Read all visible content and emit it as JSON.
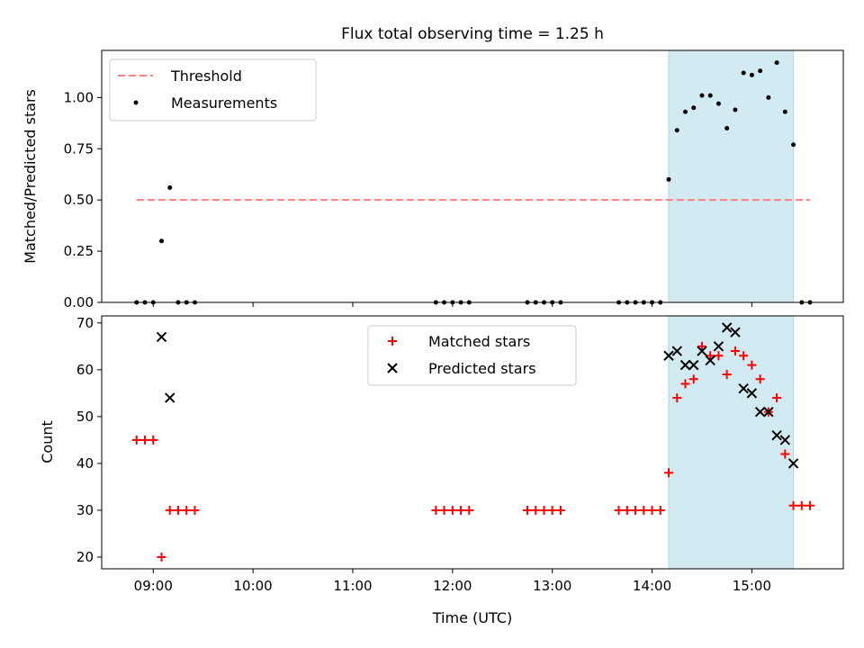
{
  "figure": {
    "title": "Flux total observing time = 1.25 h"
  },
  "chart_data": [
    {
      "type": "scatter",
      "xlabel": "",
      "ylabel": "Matched/Predicted stars",
      "xlim": [
        "08:29",
        "15:55"
      ],
      "ylim": [
        0,
        1.23
      ],
      "yticks": [
        "0.00",
        "0.25",
        "0.50",
        "0.75",
        "1.00"
      ],
      "shaded_region": {
        "x": [
          "14:10",
          "15:25"
        ],
        "color": "#add8e6"
      },
      "threshold": {
        "name": "Threshold",
        "value": 0.5,
        "x": [
          "08:50",
          "15:35"
        ],
        "color": "#ff7f7f"
      },
      "series": [
        {
          "name": "Measurements",
          "color": "#000000",
          "marker": "dot",
          "x": [
            "08:50",
            "08:55",
            "09:00",
            "09:05",
            "09:10",
            "09:15",
            "09:20",
            "09:25",
            "11:50",
            "11:55",
            "12:00",
            "12:05",
            "12:10",
            "12:45",
            "12:50",
            "12:55",
            "13:00",
            "13:05",
            "13:40",
            "13:45",
            "13:50",
            "13:55",
            "14:00",
            "14:05",
            "14:10",
            "14:15",
            "14:20",
            "14:25",
            "14:30",
            "14:35",
            "14:40",
            "14:45",
            "14:50",
            "14:55",
            "15:00",
            "15:05",
            "15:10",
            "15:15",
            "15:20",
            "15:25",
            "15:30",
            "15:35"
          ],
          "y": [
            0,
            0,
            0,
            0.3,
            0.56,
            0,
            0,
            0,
            0,
            0,
            0,
            0,
            0,
            0,
            0,
            0,
            0,
            0,
            0,
            0,
            0,
            0,
            0,
            0,
            0.6,
            0.84,
            0.93,
            0.95,
            1.01,
            1.01,
            0.97,
            0.85,
            0.94,
            1.12,
            1.11,
            1.13,
            1.0,
            1.17,
            0.93,
            0.77,
            0,
            0
          ]
        }
      ]
    },
    {
      "type": "scatter",
      "xlabel": "Time (UTC)",
      "ylabel": "Count",
      "xlim": [
        "08:29",
        "15:55"
      ],
      "ylim": [
        17.5,
        71.5
      ],
      "xticks": [
        "09:00",
        "10:00",
        "11:00",
        "12:00",
        "13:00",
        "14:00",
        "15:00"
      ],
      "yticks": [
        "20",
        "30",
        "40",
        "50",
        "60",
        "70"
      ],
      "shaded_region": {
        "x": [
          "14:10",
          "15:25"
        ],
        "color": "#add8e6"
      },
      "series": [
        {
          "name": "Matched stars",
          "color": "#ff0000",
          "marker": "plus",
          "x": [
            "08:50",
            "08:55",
            "09:00",
            "09:05",
            "09:10",
            "09:15",
            "09:20",
            "09:25",
            "11:50",
            "11:55",
            "12:00",
            "12:05",
            "12:10",
            "12:45",
            "12:50",
            "12:55",
            "13:00",
            "13:05",
            "13:40",
            "13:45",
            "13:50",
            "13:55",
            "14:00",
            "14:05",
            "14:10",
            "14:15",
            "14:20",
            "14:25",
            "14:30",
            "14:35",
            "14:40",
            "14:45",
            "14:50",
            "14:55",
            "15:00",
            "15:05",
            "15:10",
            "15:15",
            "15:20",
            "15:25",
            "15:30",
            "15:35"
          ],
          "y": [
            45,
            45,
            45,
            20,
            30,
            30,
            30,
            30,
            30,
            30,
            30,
            30,
            30,
            30,
            30,
            30,
            30,
            30,
            30,
            30,
            30,
            30,
            30,
            30,
            38,
            54,
            57,
            58,
            65,
            63,
            63,
            59,
            64,
            63,
            61,
            58,
            51,
            54,
            42,
            31,
            31,
            31
          ]
        },
        {
          "name": "Predicted stars",
          "color": "#000000",
          "marker": "x",
          "x": [
            "09:05",
            "09:10",
            "14:10",
            "14:15",
            "14:20",
            "14:25",
            "14:30",
            "14:35",
            "14:40",
            "14:45",
            "14:50",
            "14:55",
            "15:00",
            "15:05",
            "15:10",
            "15:15",
            "15:20",
            "15:25"
          ],
          "y": [
            67,
            54,
            63,
            64,
            61,
            61,
            64,
            62,
            65,
            69,
            68,
            56,
            55,
            51,
            51,
            46,
            45,
            40
          ]
        }
      ]
    }
  ]
}
